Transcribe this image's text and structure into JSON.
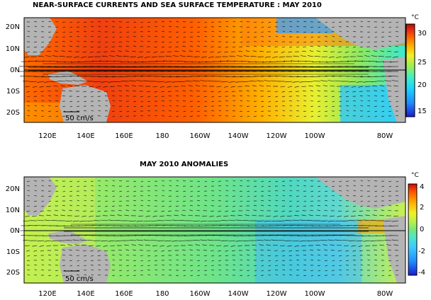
{
  "panels": [
    {
      "id": "sst",
      "title": "NEAR-SURFACE CURRENTS AND SEA SURFACE TEMPERATURE : MAY 2010",
      "ytick_labels": [
        "20N",
        "10N",
        "0N",
        "10S",
        "20S"
      ],
      "xtick_labels": [
        "120E",
        "140E",
        "160E",
        "180",
        "160W",
        "140W",
        "120W",
        "100W",
        "80W"
      ],
      "scale_label": "50 cm/s",
      "colorbar_unit": "°C",
      "colorbar_ticks": [
        "30",
        "25",
        "20",
        "15"
      ],
      "colorbar_range": [
        14,
        31
      ]
    },
    {
      "id": "anomaly",
      "title": "MAY 2010 ANOMALIES",
      "ytick_labels": [
        "20N",
        "10N",
        "0N",
        "10S",
        "20S"
      ],
      "xtick_labels": [
        "120E",
        "140E",
        "160E",
        "180",
        "160W",
        "140W",
        "120W",
        "100W",
        "80W"
      ],
      "scale_label": "50 cm/s",
      "colorbar_unit": "°C",
      "colorbar_ticks": [
        "4",
        "2",
        "0",
        "-2",
        "-4"
      ],
      "colorbar_range": [
        -4,
        4
      ]
    }
  ],
  "colors": {
    "land": "#b4b4b4",
    "sst_ramp": [
      "#1a1ad0",
      "#1f8cff",
      "#19d2ff",
      "#3cf0c8",
      "#a0f050",
      "#f0f028",
      "#ffb400",
      "#ff6400",
      "#e62814",
      "#b40a0a"
    ],
    "anom_ramp": [
      "#1a1ad0",
      "#1f8cff",
      "#3cc8ff",
      "#50e6c8",
      "#78e678",
      "#b4f050",
      "#f0f028",
      "#ffaa00",
      "#ff5000",
      "#c80a0a"
    ]
  }
}
